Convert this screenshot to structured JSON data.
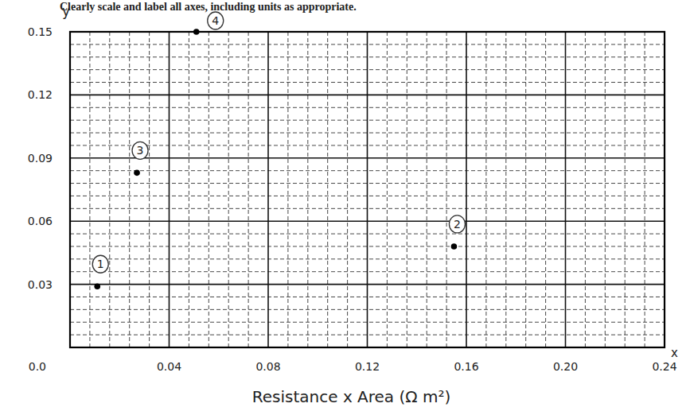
{
  "chart_data": {
    "type": "scatter",
    "title": "Clearly scale and label all axes, including units as appropriate.",
    "x_label": "Resistance x Area (Ω m²)",
    "y_label": "y",
    "x_end_label": "x",
    "x": [
      0.011,
      0.155,
      0.027,
      0.051
    ],
    "values": [
      0.029,
      0.048,
      0.083,
      0.15
    ],
    "point_labels": [
      "1",
      "2",
      "3",
      "4"
    ],
    "xlim": [
      0,
      0.24
    ],
    "ylim": [
      0,
      0.15
    ],
    "xticks": [
      {
        "value": 0,
        "label": "0.0"
      },
      0.04,
      0.08,
      0.12,
      0.16,
      {
        "value": 0.2,
        "label": "0.20"
      },
      0.24
    ],
    "yticks": [
      0.03,
      0.06,
      0.09,
      0.12,
      0.15
    ],
    "grid": true,
    "color": "#000000",
    "marker": "circle"
  }
}
